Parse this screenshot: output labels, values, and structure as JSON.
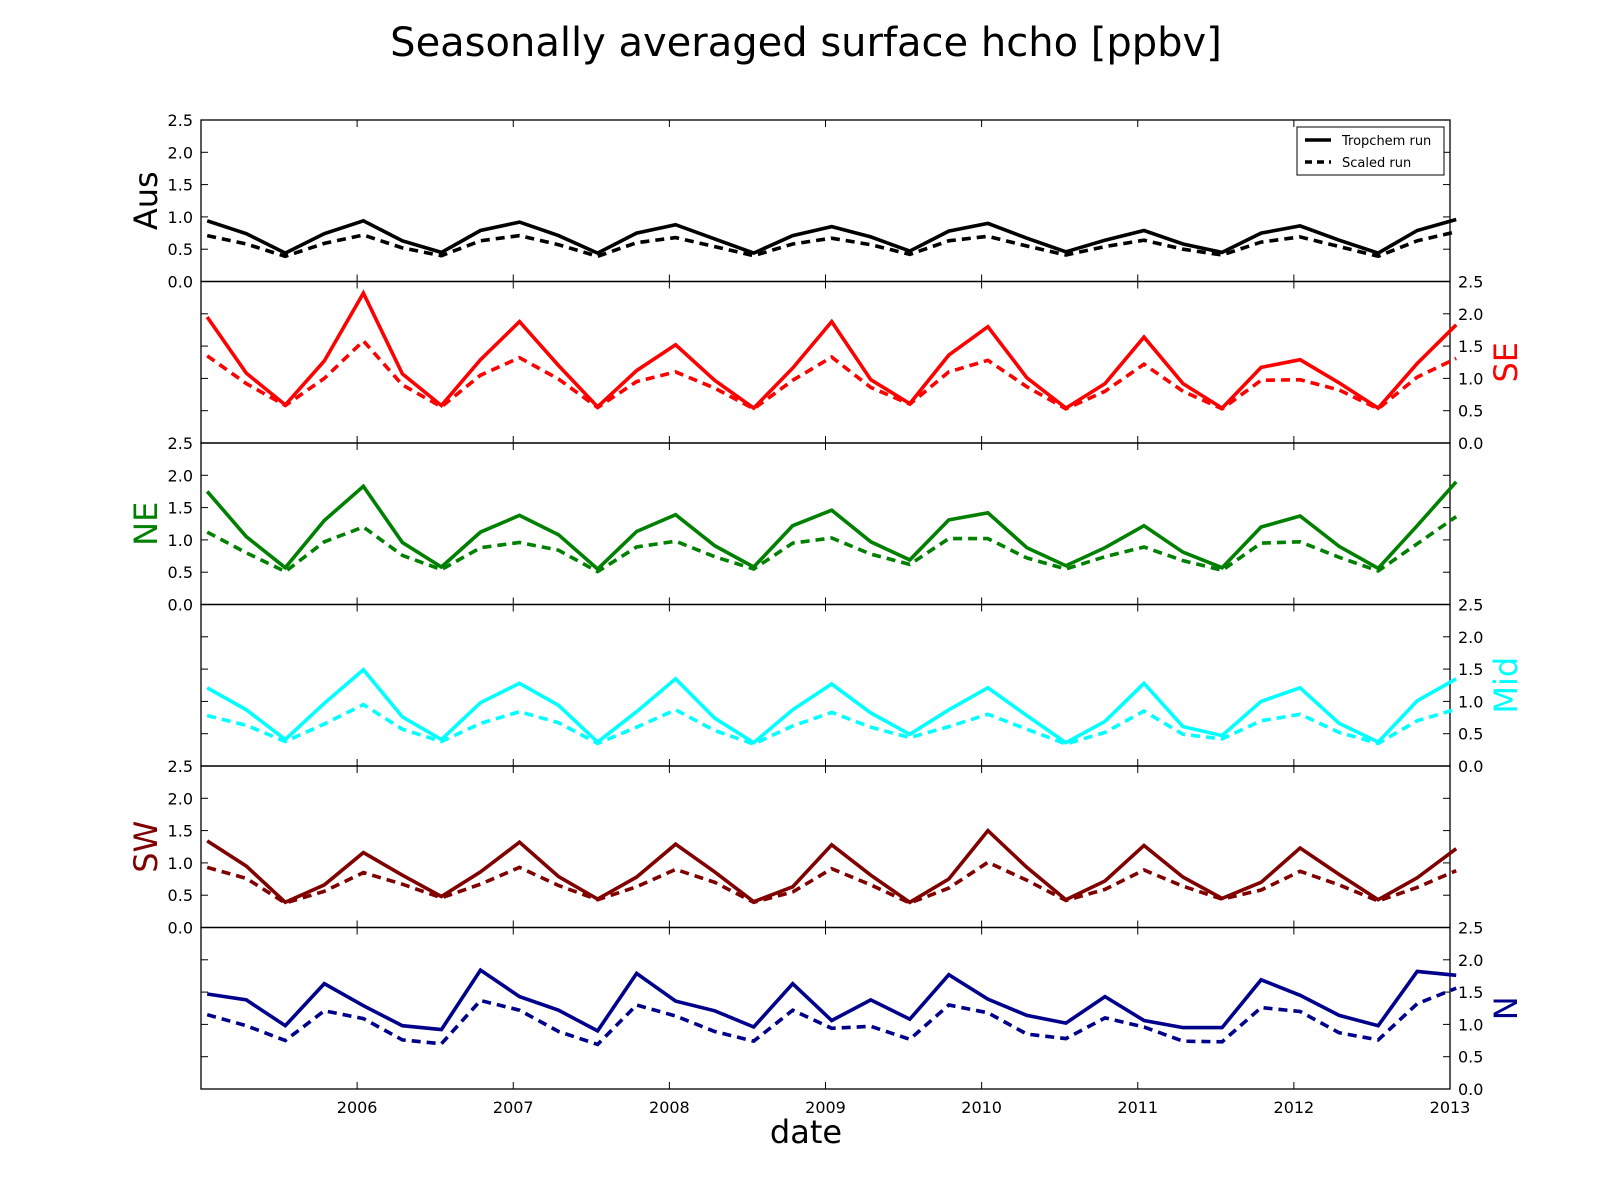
{
  "chart_data": {
    "type": "line",
    "title": "Seasonally averaged surface hcho [ppbv]",
    "xlabel": "date",
    "xlim": [
      2005.0,
      2013.0
    ],
    "x_tick_labels": [
      "2006",
      "2007",
      "2008",
      "2009",
      "2010",
      "2011",
      "2012",
      "2013"
    ],
    "x_tick_values": [
      2006,
      2007,
      2008,
      2009,
      2010,
      2011,
      2012,
      2013
    ],
    "ylim": [
      0,
      2.5
    ],
    "y_tick_labels": [
      "0.0",
      "0.5",
      "1.0",
      "1.5",
      "2.0",
      "2.5"
    ],
    "y_tick_values": [
      0,
      0.5,
      1.0,
      1.5,
      2.0,
      2.5
    ],
    "legend": {
      "placement": "top-right",
      "entries": [
        {
          "label": "Tropchem run",
          "style": "solid"
        },
        {
          "label": "Scaled run",
          "style": "dashed"
        }
      ]
    },
    "x": [
      2005.04,
      2005.29,
      2005.54,
      2005.79,
      2006.04,
      2006.29,
      2006.54,
      2006.79,
      2007.04,
      2007.29,
      2007.54,
      2007.79,
      2008.04,
      2008.29,
      2008.54,
      2008.79,
      2009.04,
      2009.29,
      2009.54,
      2009.79,
      2010.04,
      2010.29,
      2010.54,
      2010.79,
      2011.04,
      2011.29,
      2011.54,
      2011.79,
      2012.04,
      2012.29,
      2012.54,
      2012.79,
      2013.04
    ],
    "panels": [
      {
        "region": "Aus",
        "color": "#000000",
        "ylabel_side": "left",
        "series": [
          {
            "name": "Tropchem run",
            "style": "solid",
            "values": [
              0.94,
              0.74,
              0.44,
              0.74,
              0.94,
              0.63,
              0.45,
              0.79,
              0.92,
              0.71,
              0.44,
              0.75,
              0.88,
              0.66,
              0.44,
              0.71,
              0.85,
              0.69,
              0.47,
              0.78,
              0.9,
              0.67,
              0.46,
              0.64,
              0.79,
              0.58,
              0.45,
              0.75,
              0.86,
              0.64,
              0.44,
              0.79,
              0.96
            ]
          },
          {
            "name": "Scaled run",
            "style": "dashed",
            "values": [
              0.71,
              0.58,
              0.39,
              0.59,
              0.72,
              0.52,
              0.4,
              0.63,
              0.71,
              0.57,
              0.39,
              0.6,
              0.68,
              0.54,
              0.4,
              0.58,
              0.67,
              0.57,
              0.42,
              0.63,
              0.7,
              0.55,
              0.41,
              0.54,
              0.64,
              0.5,
              0.41,
              0.61,
              0.69,
              0.54,
              0.39,
              0.63,
              0.77
            ]
          }
        ]
      },
      {
        "region": "SE",
        "color": "#ff0000",
        "ylabel_side": "right",
        "series": [
          {
            "name": "Tropchem run",
            "style": "solid",
            "values": [
              1.95,
              1.08,
              0.59,
              1.27,
              2.32,
              1.07,
              0.58,
              1.29,
              1.88,
              1.2,
              0.56,
              1.12,
              1.52,
              0.97,
              0.54,
              1.16,
              1.88,
              0.98,
              0.61,
              1.36,
              1.8,
              1.01,
              0.54,
              0.92,
              1.64,
              0.92,
              0.54,
              1.17,
              1.29,
              0.93,
              0.54,
              1.23,
              1.83
            ]
          },
          {
            "name": "Scaled run",
            "style": "dashed",
            "values": [
              1.35,
              0.92,
              0.58,
              1.0,
              1.58,
              0.9,
              0.56,
              1.05,
              1.32,
              0.99,
              0.55,
              0.95,
              1.1,
              0.85,
              0.53,
              0.97,
              1.33,
              0.86,
              0.6,
              1.1,
              1.28,
              0.87,
              0.53,
              0.8,
              1.22,
              0.8,
              0.53,
              0.97,
              0.98,
              0.82,
              0.53,
              1.02,
              1.31
            ]
          }
        ]
      },
      {
        "region": "NE",
        "color": "#008000",
        "ylabel_side": "left",
        "series": [
          {
            "name": "Tropchem run",
            "style": "solid",
            "values": [
              1.75,
              1.05,
              0.57,
              1.3,
              1.83,
              0.96,
              0.58,
              1.12,
              1.38,
              1.08,
              0.55,
              1.13,
              1.39,
              0.91,
              0.58,
              1.22,
              1.46,
              0.97,
              0.69,
              1.31,
              1.42,
              0.88,
              0.6,
              0.88,
              1.22,
              0.81,
              0.57,
              1.2,
              1.37,
              0.9,
              0.56,
              1.22,
              1.9
            ]
          },
          {
            "name": "Scaled run",
            "style": "dashed",
            "values": [
              1.12,
              0.8,
              0.51,
              0.97,
              1.2,
              0.76,
              0.54,
              0.88,
              0.96,
              0.84,
              0.51,
              0.89,
              0.98,
              0.74,
              0.55,
              0.95,
              1.03,
              0.78,
              0.62,
              1.02,
              1.02,
              0.72,
              0.55,
              0.74,
              0.89,
              0.68,
              0.53,
              0.95,
              0.97,
              0.73,
              0.52,
              0.94,
              1.36
            ]
          }
        ]
      },
      {
        "region": "Mid",
        "color": "#00ffff",
        "ylabel_side": "right",
        "series": [
          {
            "name": "Tropchem run",
            "style": "solid",
            "values": [
              1.21,
              0.87,
              0.41,
              0.97,
              1.49,
              0.76,
              0.41,
              0.98,
              1.28,
              0.94,
              0.37,
              0.84,
              1.35,
              0.74,
              0.36,
              0.87,
              1.27,
              0.82,
              0.49,
              0.87,
              1.21,
              0.78,
              0.36,
              0.69,
              1.28,
              0.61,
              0.47,
              1.0,
              1.21,
              0.66,
              0.37,
              1.01,
              1.35
            ]
          },
          {
            "name": "Scaled run",
            "style": "dashed",
            "values": [
              0.78,
              0.63,
              0.38,
              0.65,
              0.95,
              0.57,
              0.38,
              0.66,
              0.84,
              0.67,
              0.35,
              0.6,
              0.87,
              0.55,
              0.34,
              0.62,
              0.83,
              0.6,
              0.44,
              0.61,
              0.8,
              0.57,
              0.34,
              0.52,
              0.85,
              0.49,
              0.42,
              0.7,
              0.8,
              0.52,
              0.35,
              0.7,
              0.88
            ]
          }
        ]
      },
      {
        "region": "SW",
        "color": "#800000",
        "ylabel_side": "left",
        "series": [
          {
            "name": "Tropchem run",
            "style": "solid",
            "values": [
              1.34,
              0.95,
              0.39,
              0.66,
              1.16,
              0.81,
              0.48,
              0.86,
              1.32,
              0.79,
              0.44,
              0.78,
              1.29,
              0.86,
              0.4,
              0.63,
              1.28,
              0.81,
              0.39,
              0.75,
              1.5,
              0.93,
              0.43,
              0.72,
              1.27,
              0.78,
              0.45,
              0.7,
              1.23,
              0.82,
              0.43,
              0.77,
              1.22
            ]
          },
          {
            "name": "Scaled run",
            "style": "dashed",
            "values": [
              0.93,
              0.76,
              0.38,
              0.56,
              0.85,
              0.67,
              0.46,
              0.67,
              0.93,
              0.65,
              0.43,
              0.63,
              0.9,
              0.7,
              0.39,
              0.55,
              0.91,
              0.66,
              0.38,
              0.61,
              1.01,
              0.73,
              0.42,
              0.59,
              0.89,
              0.64,
              0.44,
              0.58,
              0.87,
              0.66,
              0.41,
              0.62,
              0.88
            ]
          }
        ]
      },
      {
        "region": "N",
        "color": "#00008b",
        "ylabel_side": "right",
        "series": [
          {
            "name": "Tropchem run",
            "style": "solid",
            "values": [
              1.47,
              1.38,
              0.98,
              1.63,
              1.29,
              0.98,
              0.92,
              1.84,
              1.43,
              1.22,
              0.9,
              1.79,
              1.36,
              1.21,
              0.96,
              1.63,
              1.06,
              1.38,
              1.08,
              1.77,
              1.39,
              1.14,
              1.02,
              1.43,
              1.06,
              0.95,
              0.95,
              1.69,
              1.45,
              1.14,
              0.98,
              1.82,
              1.76
            ]
          },
          {
            "name": "Scaled run",
            "style": "dashed",
            "values": [
              1.15,
              0.98,
              0.75,
              1.21,
              1.09,
              0.76,
              0.7,
              1.37,
              1.22,
              0.89,
              0.69,
              1.3,
              1.13,
              0.89,
              0.74,
              1.22,
              0.94,
              0.97,
              0.77,
              1.3,
              1.18,
              0.85,
              0.78,
              1.1,
              0.96,
              0.74,
              0.73,
              1.26,
              1.2,
              0.87,
              0.76,
              1.32,
              1.56
            ]
          }
        ]
      }
    ]
  }
}
